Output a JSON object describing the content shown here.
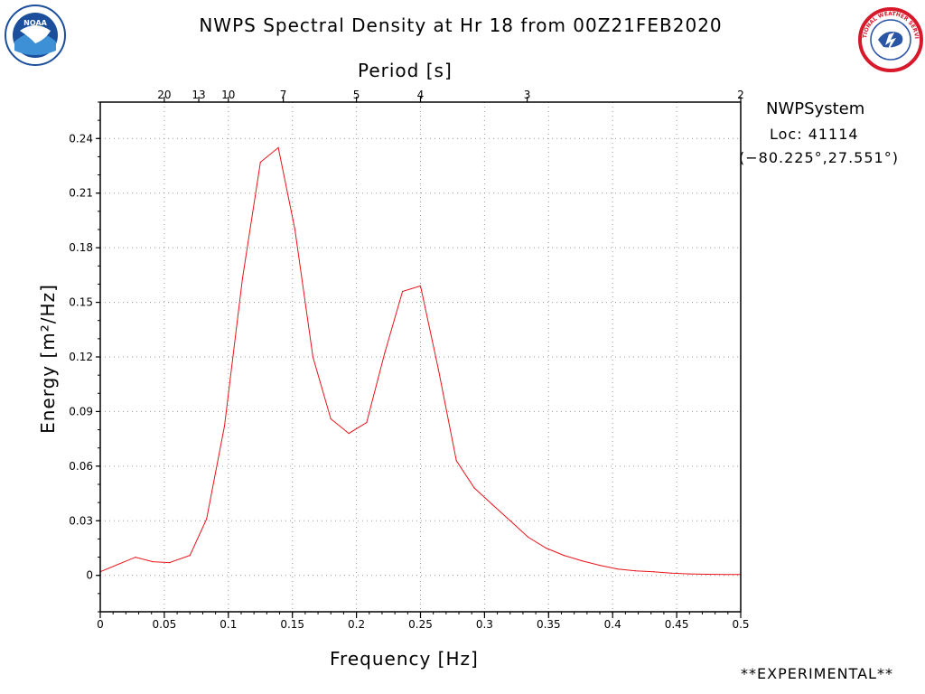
{
  "header": {
    "title": "NWPS Spectral Density at Hr 18 from 00Z21FEB2020",
    "period_axis_label": "Period [s]"
  },
  "station": {
    "name": "NWPSystem",
    "location": "Loc: 41114",
    "coordinates": "(−80.225°,27.551°)"
  },
  "footer": {
    "experimental": "**EXPERIMENTAL**"
  },
  "logos": {
    "left": "noaa-logo",
    "right": "nws-logo",
    "left_text": "NOAA",
    "right_text": "NATIONAL WEATHER SERVICE"
  },
  "colors": {
    "line": "#e8141a",
    "grid": "#9a9a9a",
    "noaa_blue": "#1b4f9c",
    "nws_red": "#d7192b"
  },
  "chart_data": {
    "type": "line",
    "title": "NWPS Spectral Density at Hr 18 from 00Z21FEB2020",
    "xlabel": "Frequency [Hz]",
    "ylabel": "Energy [m²/Hz]",
    "secondary_xlabel": "Period [s]",
    "xlim": [
      0,
      0.5
    ],
    "ylim": [
      -0.02,
      0.26
    ],
    "grid": true,
    "x_ticks": [
      0,
      0.05,
      0.1,
      0.15,
      0.2,
      0.25,
      0.3,
      0.35,
      0.4,
      0.45,
      0.5
    ],
    "x_tick_labels": [
      "0",
      "0.05",
      "0.1",
      "0.15",
      "0.2",
      "0.25",
      "0.3",
      "0.35",
      "0.4",
      "0.45",
      "0.5"
    ],
    "y_ticks": [
      0,
      0.03,
      0.06,
      0.09,
      0.12,
      0.15,
      0.18,
      0.21,
      0.24
    ],
    "y_tick_labels": [
      "0",
      "0.03",
      "0.06",
      "0.09",
      "0.12",
      "0.15",
      "0.18",
      "0.21",
      "0.24"
    ],
    "period_ticks": [
      {
        "label": "20",
        "freq": 0.05
      },
      {
        "label": "13",
        "freq": 0.0769
      },
      {
        "label": "10",
        "freq": 0.1
      },
      {
        "label": "7",
        "freq": 0.1429
      },
      {
        "label": "5",
        "freq": 0.2
      },
      {
        "label": "4",
        "freq": 0.25
      },
      {
        "label": "3",
        "freq": 0.3333
      },
      {
        "label": "2",
        "freq": 0.5
      }
    ],
    "series": [
      {
        "x": [
          0,
          0.0275,
          0.041,
          0.054,
          0.07,
          0.083,
          0.097,
          0.111,
          0.125,
          0.139,
          0.152,
          0.166,
          0.18,
          0.194,
          0.208,
          0.222,
          0.236,
          0.25,
          0.264,
          0.278,
          0.292,
          0.306,
          0.32,
          0.334,
          0.348,
          0.362,
          0.376,
          0.39,
          0.404,
          0.418,
          0.432,
          0.446,
          0.46,
          0.474,
          0.488,
          0.5
        ],
        "y": [
          0.002,
          0.01,
          0.0075,
          0.007,
          0.011,
          0.031,
          0.082,
          0.163,
          0.227,
          0.235,
          0.19,
          0.12,
          0.086,
          0.078,
          0.084,
          0.122,
          0.156,
          0.159,
          0.113,
          0.063,
          0.048,
          0.039,
          0.03,
          0.021,
          0.015,
          0.011,
          0.008,
          0.0055,
          0.0035,
          0.0025,
          0.002,
          0.0012,
          0.0008,
          0.0006,
          0.0005,
          0.0005
        ]
      }
    ]
  }
}
